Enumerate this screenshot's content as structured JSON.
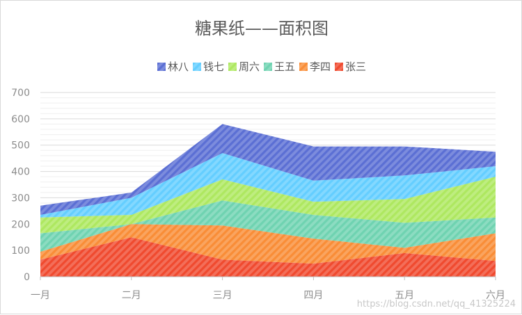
{
  "chart_data": {
    "type": "area",
    "stacked": true,
    "title": "糖果纸——面积图",
    "categories": [
      "一月",
      "二月",
      "三月",
      "四月",
      "五月",
      "六月"
    ],
    "ylim": [
      0,
      700
    ],
    "yticks": [
      0,
      100,
      200,
      300,
      400,
      500,
      600,
      700
    ],
    "grid": true,
    "legend_position": "top",
    "fill_pattern": "diagonal-stripes",
    "series": [
      {
        "name": "张三",
        "color": "#f04a2f",
        "values": [
          65,
          150,
          65,
          50,
          90,
          60
        ]
      },
      {
        "name": "李四",
        "color": "#f98d37",
        "values": [
          30,
          50,
          130,
          95,
          20,
          105
        ]
      },
      {
        "name": "王五",
        "color": "#6fd3b1",
        "values": [
          70,
          0,
          95,
          90,
          95,
          60
        ]
      },
      {
        "name": "周六",
        "color": "#aee860",
        "values": [
          60,
          35,
          80,
          50,
          90,
          155
        ]
      },
      {
        "name": "钱七",
        "color": "#64ceff",
        "values": [
          10,
          65,
          100,
          80,
          90,
          40
        ]
      },
      {
        "name": "林八",
        "color": "#5b6fd4",
        "values": [
          35,
          20,
          110,
          130,
          110,
          55
        ]
      }
    ],
    "legend_order": [
      "林八",
      "钱七",
      "周六",
      "王五",
      "李四",
      "张三"
    ]
  },
  "watermark": "https://blog.csdn.net/qq_41325224"
}
